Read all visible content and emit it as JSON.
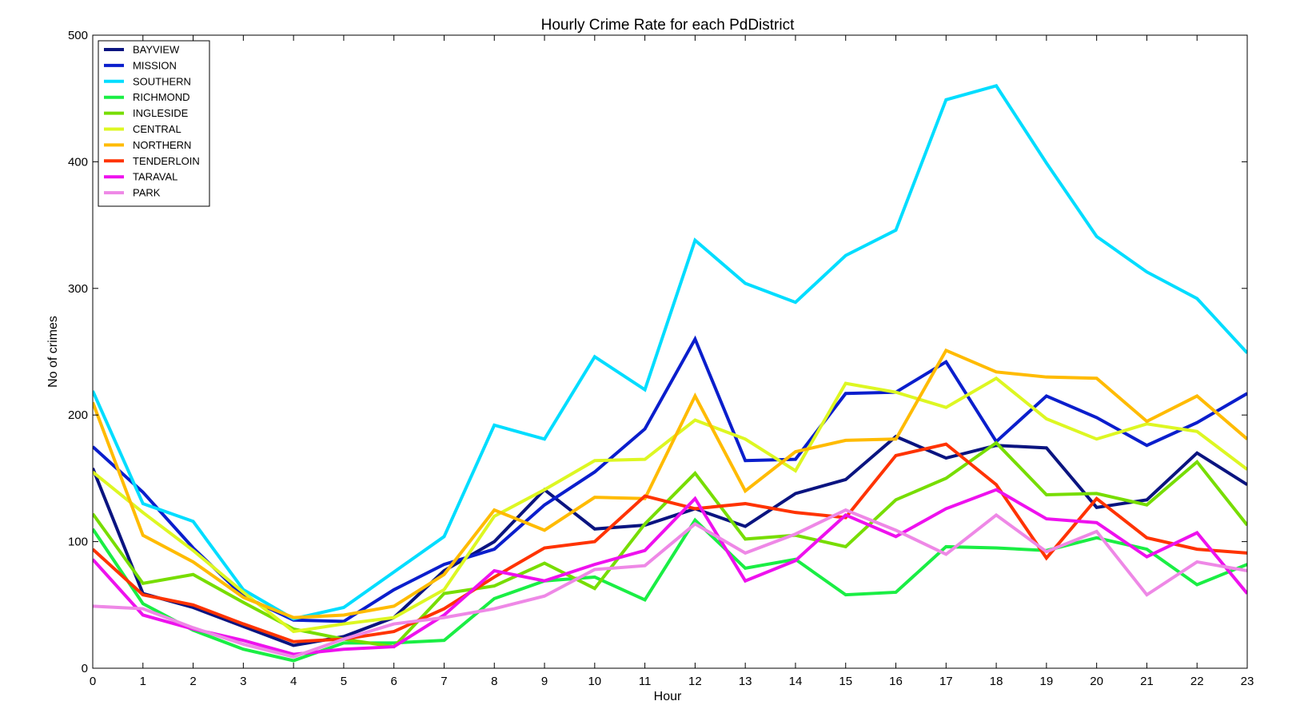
{
  "chart_data": {
    "type": "line",
    "title": "Hourly Crime Rate for each PdDistrict",
    "xlabel": "Hour",
    "ylabel": "No of crimes",
    "xlim": [
      0,
      23
    ],
    "ylim": [
      0,
      500
    ],
    "x_ticks": [
      0,
      1,
      2,
      3,
      4,
      5,
      6,
      7,
      8,
      9,
      10,
      11,
      12,
      13,
      14,
      15,
      16,
      17,
      18,
      19,
      20,
      21,
      22,
      23
    ],
    "y_ticks": [
      0,
      100,
      200,
      300,
      400,
      500
    ],
    "grid": false,
    "legend_position": "top-left",
    "x": [
      0,
      1,
      2,
      3,
      4,
      5,
      6,
      7,
      8,
      9,
      10,
      11,
      12,
      13,
      14,
      15,
      16,
      17,
      18,
      19,
      20,
      21,
      22,
      23
    ],
    "series": [
      {
        "name": "BAYVIEW",
        "color": "#0a1480",
        "values": [
          158,
          59,
          48,
          33,
          18,
          25,
          40,
          77,
          100,
          141,
          110,
          113,
          126,
          112,
          138,
          149,
          183,
          166,
          176,
          174,
          127,
          133,
          170,
          145
        ]
      },
      {
        "name": "MISSION",
        "color": "#0a1ecc",
        "values": [
          175,
          139,
          95,
          57,
          38,
          37,
          62,
          82,
          94,
          129,
          155,
          189,
          260,
          164,
          165,
          217,
          218,
          242,
          179,
          215,
          198,
          176,
          194,
          217
        ]
      },
      {
        "name": "SOUTHERN",
        "color": "#00ddff",
        "values": [
          219,
          130,
          116,
          62,
          39,
          48,
          76,
          104,
          192,
          181,
          246,
          220,
          338,
          304,
          289,
          326,
          346,
          449,
          460,
          399,
          341,
          313,
          292,
          249
        ]
      },
      {
        "name": "RICHMOND",
        "color": "#1aee44",
        "values": [
          110,
          51,
          30,
          15,
          6,
          20,
          20,
          22,
          55,
          69,
          72,
          54,
          117,
          79,
          86,
          58,
          60,
          96,
          95,
          93,
          103,
          94,
          66,
          82
        ]
      },
      {
        "name": "INGLESIDE",
        "color": "#77dd00",
        "values": [
          122,
          67,
          74,
          52,
          31,
          23,
          17,
          59,
          65,
          83,
          63,
          114,
          154,
          102,
          105,
          96,
          133,
          150,
          178,
          137,
          138,
          129,
          163,
          113
        ]
      },
      {
        "name": "CENTRAL",
        "color": "#ddf722",
        "values": [
          155,
          123,
          93,
          60,
          29,
          35,
          40,
          62,
          120,
          141,
          164,
          165,
          196,
          181,
          156,
          225,
          218,
          206,
          229,
          197,
          181,
          193,
          187,
          157
        ]
      },
      {
        "name": "NORTHERN",
        "color": "#ffbb00",
        "values": [
          210,
          105,
          84,
          56,
          40,
          42,
          49,
          74,
          125,
          109,
          135,
          134,
          215,
          140,
          171,
          180,
          181,
          251,
          234,
          230,
          229,
          195,
          215,
          181
        ]
      },
      {
        "name": "TENDERLOIN",
        "color": "#ff3300",
        "values": [
          94,
          58,
          50,
          35,
          21,
          23,
          29,
          47,
          72,
          95,
          100,
          136,
          126,
          130,
          123,
          119,
          168,
          177,
          145,
          87,
          134,
          103,
          94,
          91
        ]
      },
      {
        "name": "TARAVAL",
        "color": "#ee11ee",
        "values": [
          86,
          42,
          31,
          22,
          11,
          15,
          17,
          42,
          77,
          69,
          82,
          93,
          134,
          69,
          85,
          121,
          104,
          126,
          141,
          118,
          115,
          88,
          107,
          59
        ]
      },
      {
        "name": "PARK",
        "color": "#ee88e6",
        "values": [
          49,
          47,
          32,
          19,
          9,
          23,
          35,
          40,
          47,
          57,
          78,
          81,
          114,
          91,
          106,
          125,
          109,
          90,
          121,
          92,
          108,
          58,
          84,
          77
        ]
      }
    ]
  }
}
